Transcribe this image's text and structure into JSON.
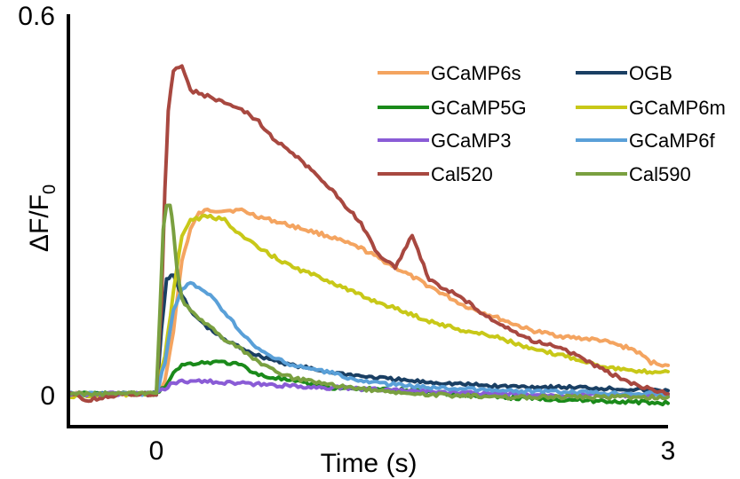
{
  "chart_data": {
    "type": "line",
    "title": "",
    "xlabel": "Time (s)",
    "ylabel_main": "ΔF/F",
    "ylabel_sub": "0",
    "xlim": [
      -0.5,
      3
    ],
    "ylim": [
      0,
      0.6
    ],
    "x_ticks": [
      {
        "value": 0,
        "label": "0"
      },
      {
        "value": 3,
        "label": "3"
      }
    ],
    "y_ticks": [
      {
        "value": 0,
        "label": "0"
      },
      {
        "value": 0.6,
        "label": "0.6"
      }
    ],
    "grid": false,
    "legend": "top-right",
    "series": [
      {
        "name": "GCaMP6s",
        "color": "#f4a460",
        "x": [
          -0.5,
          -0.3,
          -0.1,
          0.0,
          0.05,
          0.1,
          0.15,
          0.2,
          0.25,
          0.3,
          0.35,
          0.4,
          0.5,
          0.6,
          0.8,
          1.0,
          1.2,
          1.4,
          1.6,
          1.8,
          2.0,
          2.2,
          2.4,
          2.6,
          2.8,
          2.9,
          3.0
        ],
        "values": [
          0.0,
          -0.003,
          0.0,
          0.0,
          0.02,
          0.1,
          0.21,
          0.26,
          0.285,
          0.29,
          0.29,
          0.29,
          0.29,
          0.28,
          0.265,
          0.25,
          0.23,
          0.2,
          0.17,
          0.14,
          0.12,
          0.1,
          0.09,
          0.085,
          0.07,
          0.05,
          0.045
        ]
      },
      {
        "name": "OGB",
        "color": "#1a3f63",
        "x": [
          -0.5,
          -0.1,
          0.0,
          0.03,
          0.06,
          0.1,
          0.15,
          0.2,
          0.3,
          0.4,
          0.6,
          0.8,
          1.0,
          1.2,
          1.5,
          2.0,
          2.5,
          3.0
        ],
        "values": [
          0.0,
          0.0,
          0.0,
          0.1,
          0.18,
          0.19,
          0.155,
          0.13,
          0.105,
          0.085,
          0.06,
          0.045,
          0.035,
          0.028,
          0.02,
          0.012,
          0.01,
          0.005
        ]
      },
      {
        "name": "GCaMP5G",
        "color": "#1a8a1a",
        "x": [
          -0.5,
          -0.1,
          0.0,
          0.05,
          0.1,
          0.15,
          0.2,
          0.3,
          0.4,
          0.5,
          0.6,
          0.7,
          0.8,
          1.0,
          1.5,
          2.0,
          2.5,
          3.0
        ],
        "values": [
          0.0,
          0.0,
          0.0,
          0.01,
          0.035,
          0.045,
          0.048,
          0.05,
          0.05,
          0.045,
          0.03,
          0.025,
          0.02,
          0.01,
          0.005,
          -0.005,
          -0.01,
          -0.015
        ]
      },
      {
        "name": "GCaMP6m",
        "color": "#c8c818",
        "x": [
          -0.5,
          -0.1,
          0.0,
          0.05,
          0.1,
          0.15,
          0.2,
          0.3,
          0.4,
          0.5,
          0.6,
          0.8,
          1.0,
          1.2,
          1.4,
          1.6,
          1.8,
          2.0,
          2.2,
          2.4,
          2.6,
          2.8,
          3.0
        ],
        "values": [
          -0.005,
          0.0,
          0.0,
          0.06,
          0.16,
          0.25,
          0.275,
          0.28,
          0.275,
          0.25,
          0.23,
          0.2,
          0.18,
          0.155,
          0.135,
          0.115,
          0.1,
          0.09,
          0.07,
          0.06,
          0.045,
          0.035,
          0.035
        ]
      },
      {
        "name": "GCaMP3",
        "color": "#8a5cd6",
        "x": [
          -0.5,
          -0.1,
          0.0,
          0.05,
          0.1,
          0.2,
          0.3,
          0.4,
          0.6,
          0.8,
          1.0,
          1.5,
          2.0,
          2.5,
          3.0
        ],
        "values": [
          0.0,
          0.0,
          0.0,
          0.008,
          0.018,
          0.02,
          0.02,
          0.018,
          0.015,
          0.012,
          0.01,
          0.005,
          0.0,
          -0.002,
          -0.003
        ]
      },
      {
        "name": "GCaMP6f",
        "color": "#5aa0d8",
        "x": [
          -0.5,
          -0.1,
          0.0,
          0.05,
          0.1,
          0.15,
          0.2,
          0.3,
          0.4,
          0.5,
          0.6,
          0.7,
          0.8,
          1.0,
          1.2,
          1.5,
          2.0,
          2.5,
          3.0
        ],
        "values": [
          0.0,
          0.0,
          0.0,
          0.05,
          0.13,
          0.165,
          0.175,
          0.16,
          0.13,
          0.095,
          0.07,
          0.055,
          0.045,
          0.035,
          0.02,
          0.012,
          0.005,
          0.002,
          0.0
        ]
      },
      {
        "name": "Cal520",
        "color": "#a84840",
        "x": [
          -0.5,
          -0.4,
          -0.3,
          -0.2,
          -0.1,
          0.0,
          0.03,
          0.05,
          0.07,
          0.1,
          0.15,
          0.2,
          0.3,
          0.4,
          0.5,
          0.6,
          0.7,
          0.8,
          1.0,
          1.2,
          1.3,
          1.4,
          1.5,
          1.6,
          1.7,
          1.8,
          1.9,
          2.0,
          2.2,
          2.4,
          2.6,
          2.8,
          3.0
        ],
        "values": [
          0.0,
          -0.01,
          -0.005,
          0.0,
          0.0,
          0.0,
          0.15,
          0.32,
          0.45,
          0.51,
          0.52,
          0.48,
          0.47,
          0.46,
          0.45,
          0.43,
          0.4,
          0.38,
          0.33,
          0.27,
          0.22,
          0.2,
          0.25,
          0.18,
          0.165,
          0.15,
          0.13,
          0.11,
          0.085,
          0.07,
          0.04,
          0.015,
          0.0
        ]
      },
      {
        "name": "Cal590",
        "color": "#7aa040",
        "x": [
          -0.5,
          -0.1,
          0.0,
          0.02,
          0.04,
          0.06,
          0.08,
          0.1,
          0.12,
          0.15,
          0.2,
          0.3,
          0.4,
          0.5,
          0.6,
          0.7,
          0.8,
          1.0,
          1.2,
          1.5,
          2.0,
          2.5,
          3.0
        ],
        "values": [
          0.0,
          0.0,
          0.0,
          0.12,
          0.26,
          0.3,
          0.3,
          0.26,
          0.2,
          0.15,
          0.13,
          0.11,
          0.085,
          0.07,
          0.05,
          0.035,
          0.025,
          0.015,
          0.008,
          0.0,
          -0.005,
          -0.005,
          -0.005
        ]
      }
    ]
  }
}
